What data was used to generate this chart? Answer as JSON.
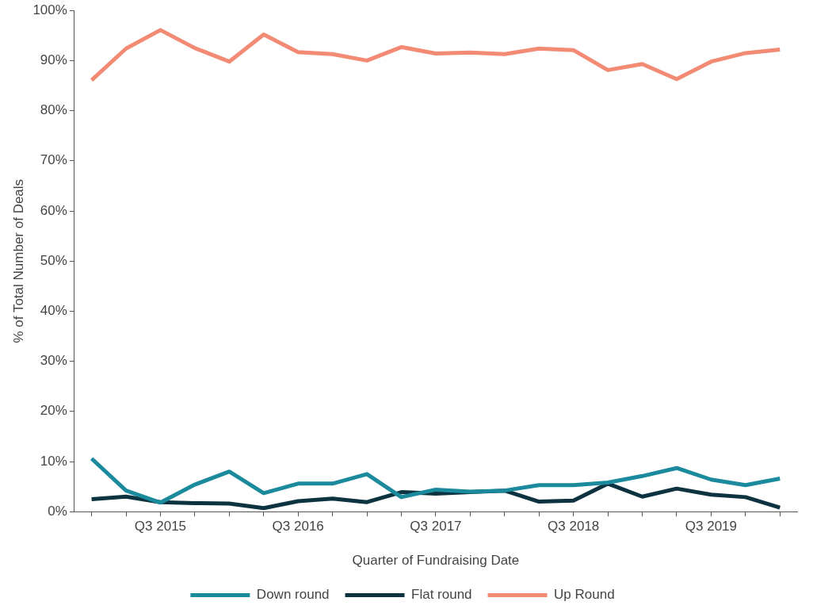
{
  "chart_data": {
    "type": "line",
    "xlabel": "Quarter of Fundraising Date",
    "ylabel": "% of Total Number of Deals",
    "categories": [
      null,
      null,
      "Q3 2015",
      null,
      null,
      null,
      "Q3 2016",
      null,
      null,
      null,
      "Q3 2017",
      null,
      null,
      null,
      "Q3 2018",
      null,
      null,
      null,
      "Q3 2019",
      null,
      null
    ],
    "series": [
      {
        "name": "Down round",
        "color": "#1a8a9c",
        "values": [
          10.6,
          4.2,
          1.8,
          5.4,
          8.0,
          3.7,
          5.6,
          5.6,
          7.5,
          2.9,
          4.4,
          4.0,
          4.2,
          5.3,
          5.3,
          5.8,
          7.1,
          8.7,
          6.4,
          5.3,
          6.6
        ]
      },
      {
        "name": "Flat round",
        "color": "#0d3340",
        "values": [
          2.5,
          3.0,
          1.9,
          1.7,
          1.6,
          0.7,
          2.1,
          2.6,
          1.9,
          3.9,
          3.6,
          3.9,
          4.2,
          2.0,
          2.2,
          5.6,
          3.0,
          4.6,
          3.4,
          2.9,
          0.8
        ]
      },
      {
        "name": "Up Round",
        "color": "#f28a74",
        "values": [
          86.1,
          92.4,
          96.1,
          92.5,
          89.8,
          95.2,
          91.7,
          91.3,
          90.0,
          92.7,
          91.4,
          91.6,
          91.3,
          92.4,
          92.1,
          88.1,
          89.3,
          86.3,
          89.8,
          91.5,
          92.2
        ]
      }
    ],
    "ylim": [
      0,
      100
    ],
    "yticks": [
      {
        "value": 0,
        "label": "0%"
      },
      {
        "value": 10,
        "label": "10%"
      },
      {
        "value": 20,
        "label": "20%"
      },
      {
        "value": 30,
        "label": "30%"
      },
      {
        "value": 40,
        "label": "40%"
      },
      {
        "value": 50,
        "label": "50%"
      },
      {
        "value": 60,
        "label": "60%"
      },
      {
        "value": 70,
        "label": "70%"
      },
      {
        "value": 80,
        "label": "80%"
      },
      {
        "value": 90,
        "label": "90%"
      },
      {
        "value": 100,
        "label": "100%"
      }
    ],
    "grid": false,
    "legend": "bottom",
    "marker": "none",
    "line_style": "solid"
  }
}
